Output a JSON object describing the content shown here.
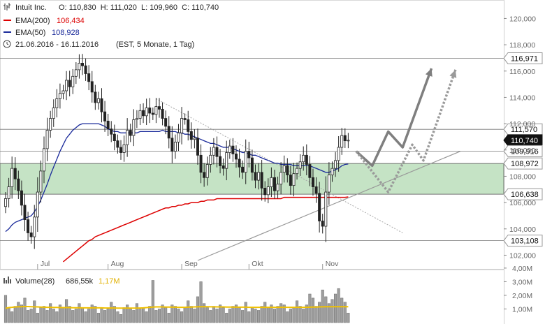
{
  "header": {
    "title": "Intuit Inc.",
    "ohlc": "O: 110,830  H: 111,020  L: 109,960  C: 110,740",
    "ema200_label": "EMA(200)",
    "ema200_value": "106,434",
    "ema50_label": "EMA(50)",
    "ema50_value": "108,928",
    "period": "21.06.2016 - 16.11.2016",
    "period_note": "(EST, 5 Monate, 1 Tag)"
  },
  "volume_header": {
    "label": "Volume(28)",
    "value": "686,55k",
    "avg": "1,17M"
  },
  "colors": {
    "ema200": "#dd0000",
    "ema50": "#1a2a9a",
    "band": "#c5e3c5",
    "volume_bar": "#9e9e9e",
    "volume_avg": "#f0c000",
    "arrow_solid": "#7f7f7f",
    "arrow_dotted": "#9a9a9a"
  },
  "chart_data": {
    "type": "candlestick",
    "y_axis_ticks": [
      "120,000",
      "118,000",
      "116,000",
      "114,000",
      "112,000",
      "110,000",
      "108,000",
      "106,000",
      "104,000",
      "102,000"
    ],
    "y_tick_values": [
      120,
      118,
      116,
      114,
      112,
      110,
      108,
      106,
      104,
      102
    ],
    "ylim": [
      101.6,
      120.5
    ],
    "x_axis_ticks": [
      {
        "label": "Jul",
        "x": 10
      },
      {
        "label": "Aug",
        "x": 32
      },
      {
        "label": "Sep",
        "x": 55
      },
      {
        "label": "Okt",
        "x": 76
      },
      {
        "label": "Nov",
        "x": 99
      }
    ],
    "x_range": [
      0,
      113
    ],
    "level_labels": [
      {
        "label": "116,971",
        "value": 116.971,
        "type": "line"
      },
      {
        "label": "111,570",
        "value": 111.57,
        "type": "line"
      },
      {
        "label": "110,740",
        "value": 110.74,
        "type": "current"
      },
      {
        "label": "109,916",
        "value": 109.916,
        "type": "line"
      },
      {
        "label": "108,972",
        "value": 108.972,
        "type": "band"
      },
      {
        "label": "106,638",
        "value": 106.638,
        "type": "band"
      },
      {
        "label": "103,108",
        "value": 103.108,
        "type": "line"
      }
    ],
    "support_band": [
      106.638,
      108.972
    ],
    "closes": [
      106.3,
      107.2,
      108.6,
      107.8,
      106.9,
      105.8,
      104.7,
      103.7,
      103.4,
      104.9,
      106.8,
      108.4,
      110.1,
      111.5,
      112.4,
      113.2,
      113.9,
      114.3,
      114.5,
      115.3,
      114.8,
      115.6,
      116.1,
      116.6,
      116.4,
      115.8,
      115.2,
      114.4,
      113.6,
      113.9,
      112.9,
      112.2,
      111.6,
      111.2,
      110.7,
      110.2,
      109.8,
      110.4,
      111.5,
      111.1,
      112.3,
      112.4,
      113.0,
      112.6,
      113.2,
      112.8,
      112.7,
      113.3,
      113.1,
      112.4,
      111.8,
      110.9,
      109.9,
      110.6,
      111.3,
      112.4,
      112.3,
      111.4,
      110.8,
      110.9,
      109.6,
      108.3,
      107.9,
      108.9,
      109.6,
      110.2,
      109.5,
      108.8,
      108.6,
      109.8,
      110.3,
      109.7,
      109.3,
      108.7,
      108.3,
      109.9,
      109.4,
      108.3,
      107.7,
      108.3,
      107.1,
      106.6,
      107.2,
      107.9,
      106.9,
      107.4,
      108.3,
      108.8,
      108.1,
      107.3,
      108.2,
      108.6,
      109.1,
      109.6,
      108.9,
      107.9,
      107.2,
      106.7,
      104.6,
      104.2,
      106.8,
      108.1,
      108.6,
      109.2,
      110.2,
      111.1,
      110.7,
      110.74
    ],
    "ema50": [
      103.8,
      104.0,
      104.3,
      104.5,
      104.6,
      104.7,
      104.8,
      104.9,
      105.0,
      105.3,
      105.7,
      106.2,
      106.8,
      107.4,
      108.1,
      108.7,
      109.3,
      109.9,
      110.4,
      110.9,
      111.2,
      111.5,
      111.7,
      111.9,
      112.0,
      112.0,
      112.0,
      112.0,
      112.0,
      112.0,
      111.9,
      111.8,
      111.6,
      111.5,
      111.4,
      111.4,
      111.3,
      111.3,
      111.3,
      111.3,
      111.3,
      111.3,
      111.4,
      111.4,
      111.4,
      111.4,
      111.4,
      111.4,
      111.4,
      111.5,
      111.4,
      111.4,
      111.4,
      111.4,
      111.3,
      111.3,
      111.2,
      111.2,
      111.1,
      111.0,
      110.9,
      110.8,
      110.7,
      110.6,
      110.5,
      110.5,
      110.4,
      110.3,
      110.2,
      110.2,
      110.2,
      110.1,
      110.0,
      109.9,
      109.8,
      109.8,
      109.7,
      109.6,
      109.6,
      109.5,
      109.4,
      109.3,
      109.2,
      109.1,
      109.0,
      109.0,
      108.9,
      108.9,
      108.9,
      108.9,
      108.8,
      108.8,
      108.8,
      108.8,
      108.8,
      108.8,
      108.7,
      108.6,
      108.5,
      108.4,
      108.3,
      108.3,
      108.4,
      108.5,
      108.6,
      108.8,
      108.9,
      108.93
    ],
    "ema200_start_index": 18,
    "ema200": [
      101.5,
      101.7,
      101.9,
      102.1,
      102.3,
      102.5,
      102.7,
      102.9,
      103.1,
      103.2,
      103.4,
      103.5,
      103.6,
      103.7,
      103.8,
      103.9,
      104.0,
      104.1,
      104.2,
      104.3,
      104.4,
      104.5,
      104.6,
      104.7,
      104.8,
      104.9,
      105.0,
      105.1,
      105.2,
      105.3,
      105.4,
      105.5,
      105.6,
      105.6,
      105.7,
      105.7,
      105.8,
      105.8,
      105.9,
      105.9,
      106.0,
      106.0,
      106.0,
      106.1,
      106.1,
      106.2,
      106.2,
      106.2,
      106.3,
      106.3,
      106.3,
      106.3,
      106.3,
      106.3,
      106.3,
      106.3,
      106.3,
      106.3,
      106.3,
      106.3,
      106.3,
      106.3,
      106.3,
      106.3,
      106.3,
      106.3,
      106.3,
      106.3,
      106.3,
      106.4,
      106.4,
      106.4,
      106.4,
      106.4,
      106.4,
      106.4,
      106.4,
      106.4,
      106.4,
      106.4,
      106.4,
      106.4,
      106.4,
      106.4,
      106.4,
      106.4,
      106.4,
      106.4,
      106.4,
      106.43
    ],
    "trend_lines": [
      {
        "style": "dotted",
        "points": [
          [
            47,
            113.9
          ],
          [
            124,
            103.7
          ]
        ]
      },
      {
        "style": "solid",
        "points": [
          [
            60,
            101.6
          ],
          [
            142,
            109.9
          ]
        ]
      }
    ],
    "projection_solid": [
      [
        109.5,
        109.9
      ],
      [
        114.5,
        108.8
      ],
      [
        119.5,
        111.4
      ],
      [
        124,
        110.2
      ],
      [
        133,
        116.2
      ]
    ],
    "projection_dotted": [
      [
        109.5,
        109.9
      ],
      [
        119.5,
        106.8
      ],
      [
        127,
        110.4
      ],
      [
        130.5,
        109.2
      ],
      [
        140.5,
        116.1
      ]
    ],
    "volume_ticks": [
      "4,00M",
      "3,00M",
      "2,00M",
      "1,00M"
    ],
    "volume_tick_values": [
      4,
      3,
      2,
      1
    ],
    "volume_max": 4.2,
    "volume": [
      2.0,
      1.1,
      0.8,
      1.2,
      1.5,
      1.3,
      1.8,
      0.9,
      1.0,
      1.6,
      0.7,
      1.1,
      1.2,
      0.9,
      1.4,
      1.0,
      0.8,
      1.3,
      1.1,
      1.7,
      1.2,
      0.9,
      1.0,
      1.4,
      1.1,
      0.8,
      1.0,
      1.3,
      1.2,
      0.7,
      1.1,
      0.9,
      1.0,
      1.5,
      1.2,
      0.8,
      0.6,
      1.1,
      1.3,
      1.0,
      0.9,
      1.4,
      1.0,
      1.1,
      0.8,
      1.2,
      3.1,
      0.9,
      1.0,
      1.3,
      1.1,
      0.7,
      1.3,
      1.2,
      1.0,
      0.8,
      1.1,
      1.6,
      1.2,
      1.0,
      1.9,
      3.0,
      1.4,
      1.1,
      0.9,
      1.2,
      1.0,
      1.3,
      1.1,
      0.7,
      1.0,
      1.2,
      1.3,
      1.1,
      0.9,
      1.5,
      0.8,
      1.1,
      1.0,
      0.9,
      1.2,
      1.5,
      1.1,
      1.3,
      1.0,
      1.2,
      1.4,
      1.3,
      0.8,
      1.0,
      1.1,
      1.6,
      1.2,
      1.0,
      1.3,
      2.1,
      1.8,
      1.2,
      1.5,
      2.4,
      1.9,
      1.4,
      1.7,
      2.1,
      2.5,
      1.8,
      1.5,
      0.7
    ],
    "volume_avg": [
      1.05,
      1.1,
      1.12,
      1.15,
      1.16,
      1.17,
      1.18,
      1.18,
      1.17,
      1.16,
      1.15,
      1.14,
      1.13,
      1.12,
      1.12,
      1.11,
      1.11,
      1.1,
      1.1,
      1.1,
      1.1,
      1.09,
      1.09,
      1.09,
      1.08,
      1.08,
      1.08,
      1.08,
      1.08,
      1.08,
      1.08,
      1.07,
      1.07,
      1.07,
      1.07,
      1.06,
      1.06,
      1.06,
      1.06,
      1.06,
      1.06,
      1.06,
      1.07,
      1.08,
      1.1,
      1.12,
      1.14,
      1.15,
      1.15,
      1.15,
      1.14,
      1.14,
      1.13,
      1.13,
      1.12,
      1.12,
      1.12,
      1.13,
      1.14,
      1.15,
      1.16,
      1.17,
      1.17,
      1.17,
      1.16,
      1.16,
      1.15,
      1.15,
      1.15,
      1.14,
      1.14,
      1.14,
      1.13,
      1.13,
      1.13,
      1.13,
      1.12,
      1.12,
      1.12,
      1.12,
      1.12,
      1.12,
      1.12,
      1.12,
      1.12,
      1.12,
      1.12,
      1.12,
      1.12,
      1.12,
      1.12,
      1.12,
      1.12,
      1.12,
      1.12,
      1.13,
      1.14,
      1.14,
      1.15,
      1.16,
      1.17,
      1.17,
      1.17,
      1.17,
      1.17,
      1.17,
      1.17,
      1.17
    ]
  }
}
